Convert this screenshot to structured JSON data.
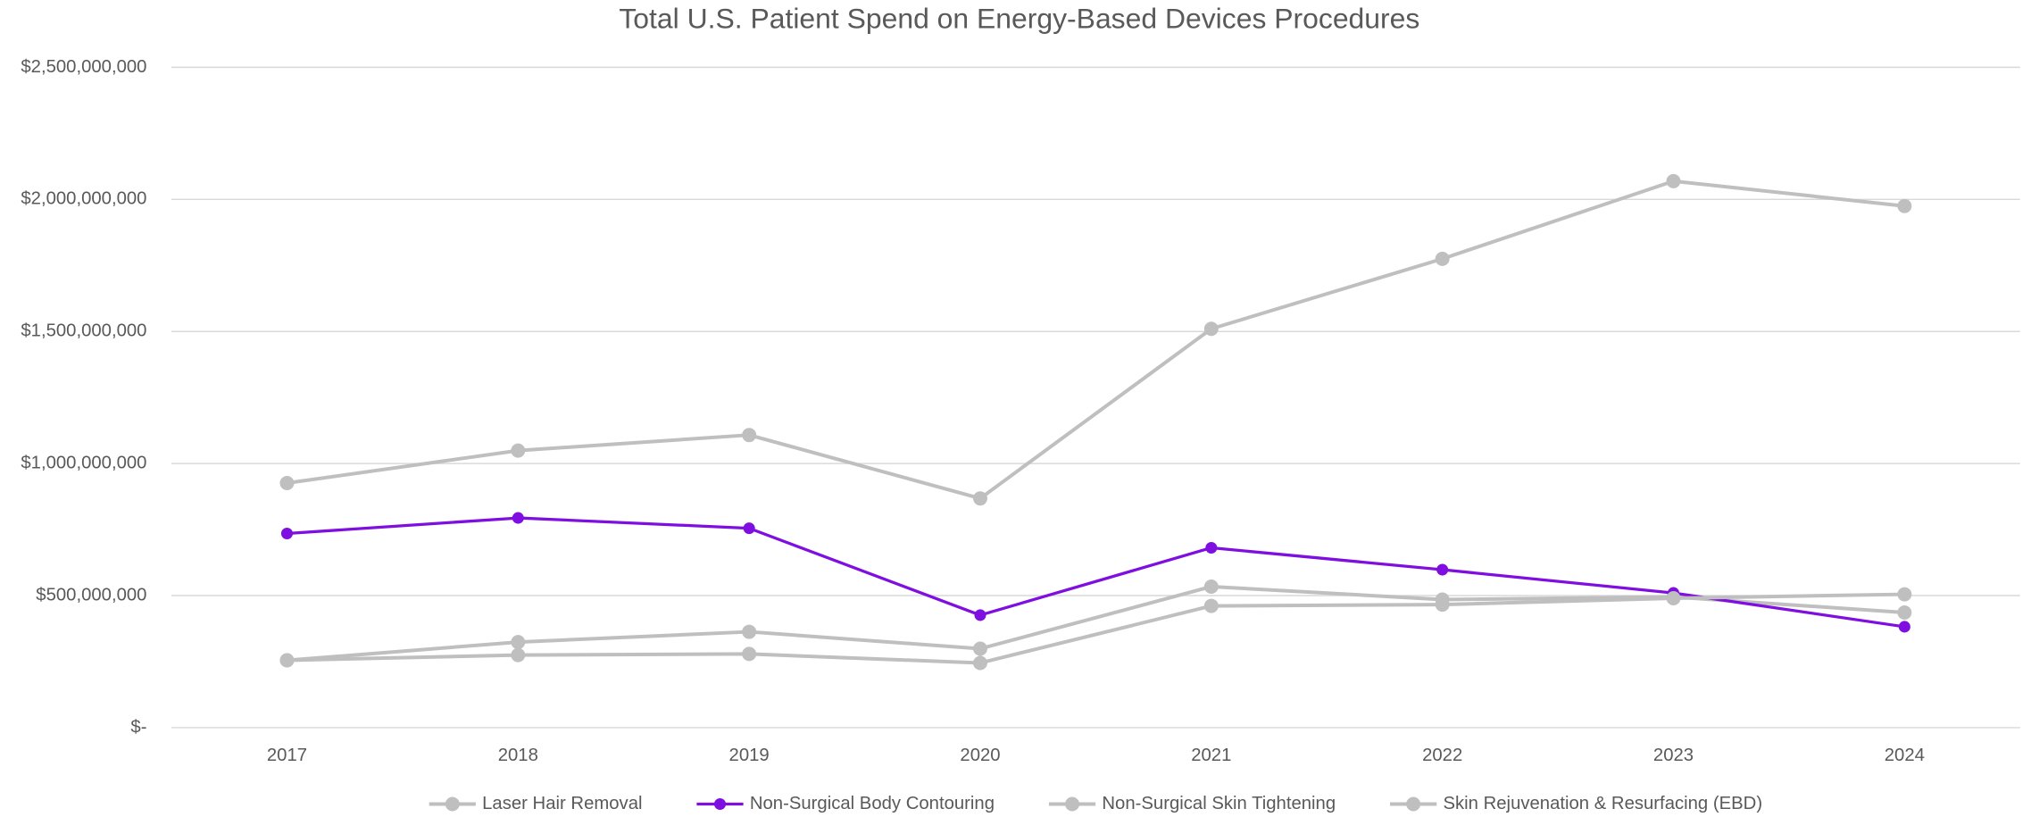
{
  "chart_data": {
    "type": "line",
    "title": "Total U.S. Patient Spend on Energy-Based Devices Procedures",
    "categories": [
      "2017",
      "2018",
      "2019",
      "2020",
      "2021",
      "2022",
      "2023",
      "2024"
    ],
    "series": [
      {
        "name": "Laser Hair Removal",
        "color": "#bfbfbf",
        "values": [
          255000000,
          324000000,
          363000000,
          299000000,
          534000000,
          485000000,
          495000000,
          436000000
        ]
      },
      {
        "name": "Non-Surgical Body Contouring",
        "color": "#7f0fe0",
        "values": [
          735000000,
          794000000,
          755000000,
          426000000,
          681000000,
          598000000,
          510000000,
          382000000
        ]
      },
      {
        "name": "Non-Surgical Skin Tightening",
        "color": "#bfbfbf",
        "values": [
          255000000,
          275000000,
          279000000,
          245000000,
          461000000,
          466000000,
          490000000,
          505000000
        ]
      },
      {
        "name": "Skin Rejuvenation & Resurfacing (EBD)",
        "color": "#bfbfbf",
        "values": [
          926000000,
          1049000000,
          1108000000,
          868000000,
          1510000000,
          1775000000,
          2069000000,
          1975000000
        ]
      }
    ],
    "ylim": [
      0,
      2500000000
    ],
    "yticks": [
      {
        "value": 0,
        "label": "$-"
      },
      {
        "value": 500000000,
        "label": "$500,000,000"
      },
      {
        "value": 1000000000,
        "label": "$1,000,000,000"
      },
      {
        "value": 1500000000,
        "label": "$1,500,000,000"
      },
      {
        "value": 2000000000,
        "label": "$2,000,000,000"
      },
      {
        "value": 2500000000,
        "label": "$2,500,000,000"
      }
    ],
    "grid": true,
    "legend": "bottom"
  }
}
